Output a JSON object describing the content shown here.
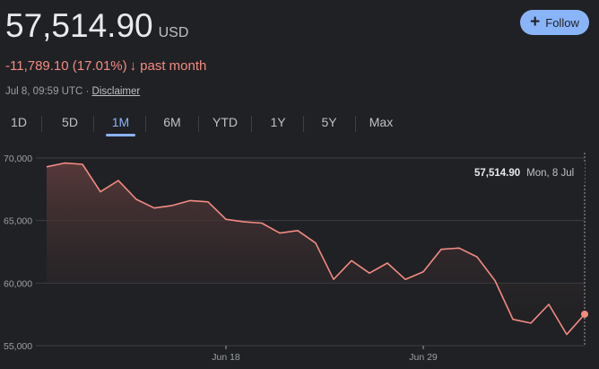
{
  "quote": {
    "price": "57,514.90",
    "currency": "USD",
    "change": "-11,789.10 (17.01%)",
    "change_arrow": "↓",
    "period": "past month",
    "timestamp": "Jul 8, 09:59 UTC ·",
    "disclaimer": "Disclaimer"
  },
  "follow": {
    "icon": "plus-icon",
    "label": "Follow",
    "plus": "+"
  },
  "tabs": [
    {
      "label": "1D"
    },
    {
      "label": "5D"
    },
    {
      "label": "1M",
      "active": true
    },
    {
      "label": "6M"
    },
    {
      "label": "YTD"
    },
    {
      "label": "1Y"
    },
    {
      "label": "5Y"
    },
    {
      "label": "Max"
    }
  ],
  "tooltip": {
    "price": "57,514.90",
    "date": "Mon, 8 Jul"
  },
  "colors": {
    "line": "#f28b82",
    "accent": "#8ab4f8",
    "background": "#202124",
    "grid": "#3c4043"
  },
  "chart_data": {
    "type": "area",
    "ylim": [
      55000,
      70000
    ],
    "yticks": [
      "70,000",
      "65,000",
      "60,000",
      "55,000"
    ],
    "ytick_values": [
      70000,
      65000,
      60000,
      55000
    ],
    "xticks": [
      {
        "label": "Jun 18",
        "day": 10
      },
      {
        "label": "Jun 29",
        "day": 21
      }
    ],
    "grid": true,
    "x": [
      0,
      1,
      2,
      3,
      4,
      5,
      6,
      7,
      8,
      9,
      10,
      11,
      12,
      13,
      14,
      15,
      16,
      17,
      18,
      19,
      20,
      21,
      22,
      23,
      24,
      25,
      26,
      27,
      28,
      29,
      30
    ],
    "values": [
      69300,
      69600,
      69500,
      67300,
      68200,
      66700,
      66000,
      66200,
      66600,
      66500,
      65100,
      64900,
      64800,
      64000,
      64200,
      63200,
      60300,
      61800,
      60800,
      61600,
      60300,
      60900,
      62700,
      62800,
      62100,
      60200,
      57100,
      56800,
      58300,
      55900,
      57514.9
    ]
  }
}
